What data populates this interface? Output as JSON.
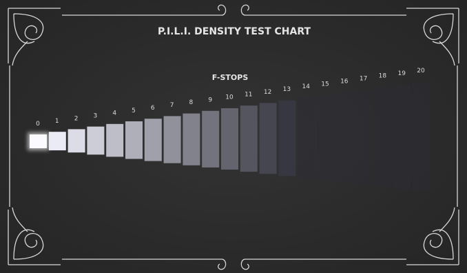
{
  "title": "P.I.L.I. DENSITY TEST CHART",
  "subtitle": "F-STOPS",
  "stops": [
    "0",
    "1",
    "2",
    "3",
    "4",
    "5",
    "6",
    "7",
    "8",
    "9",
    "10",
    "11",
    "12",
    "13",
    "14",
    "15",
    "16",
    "17",
    "18",
    "19",
    "20"
  ]
}
